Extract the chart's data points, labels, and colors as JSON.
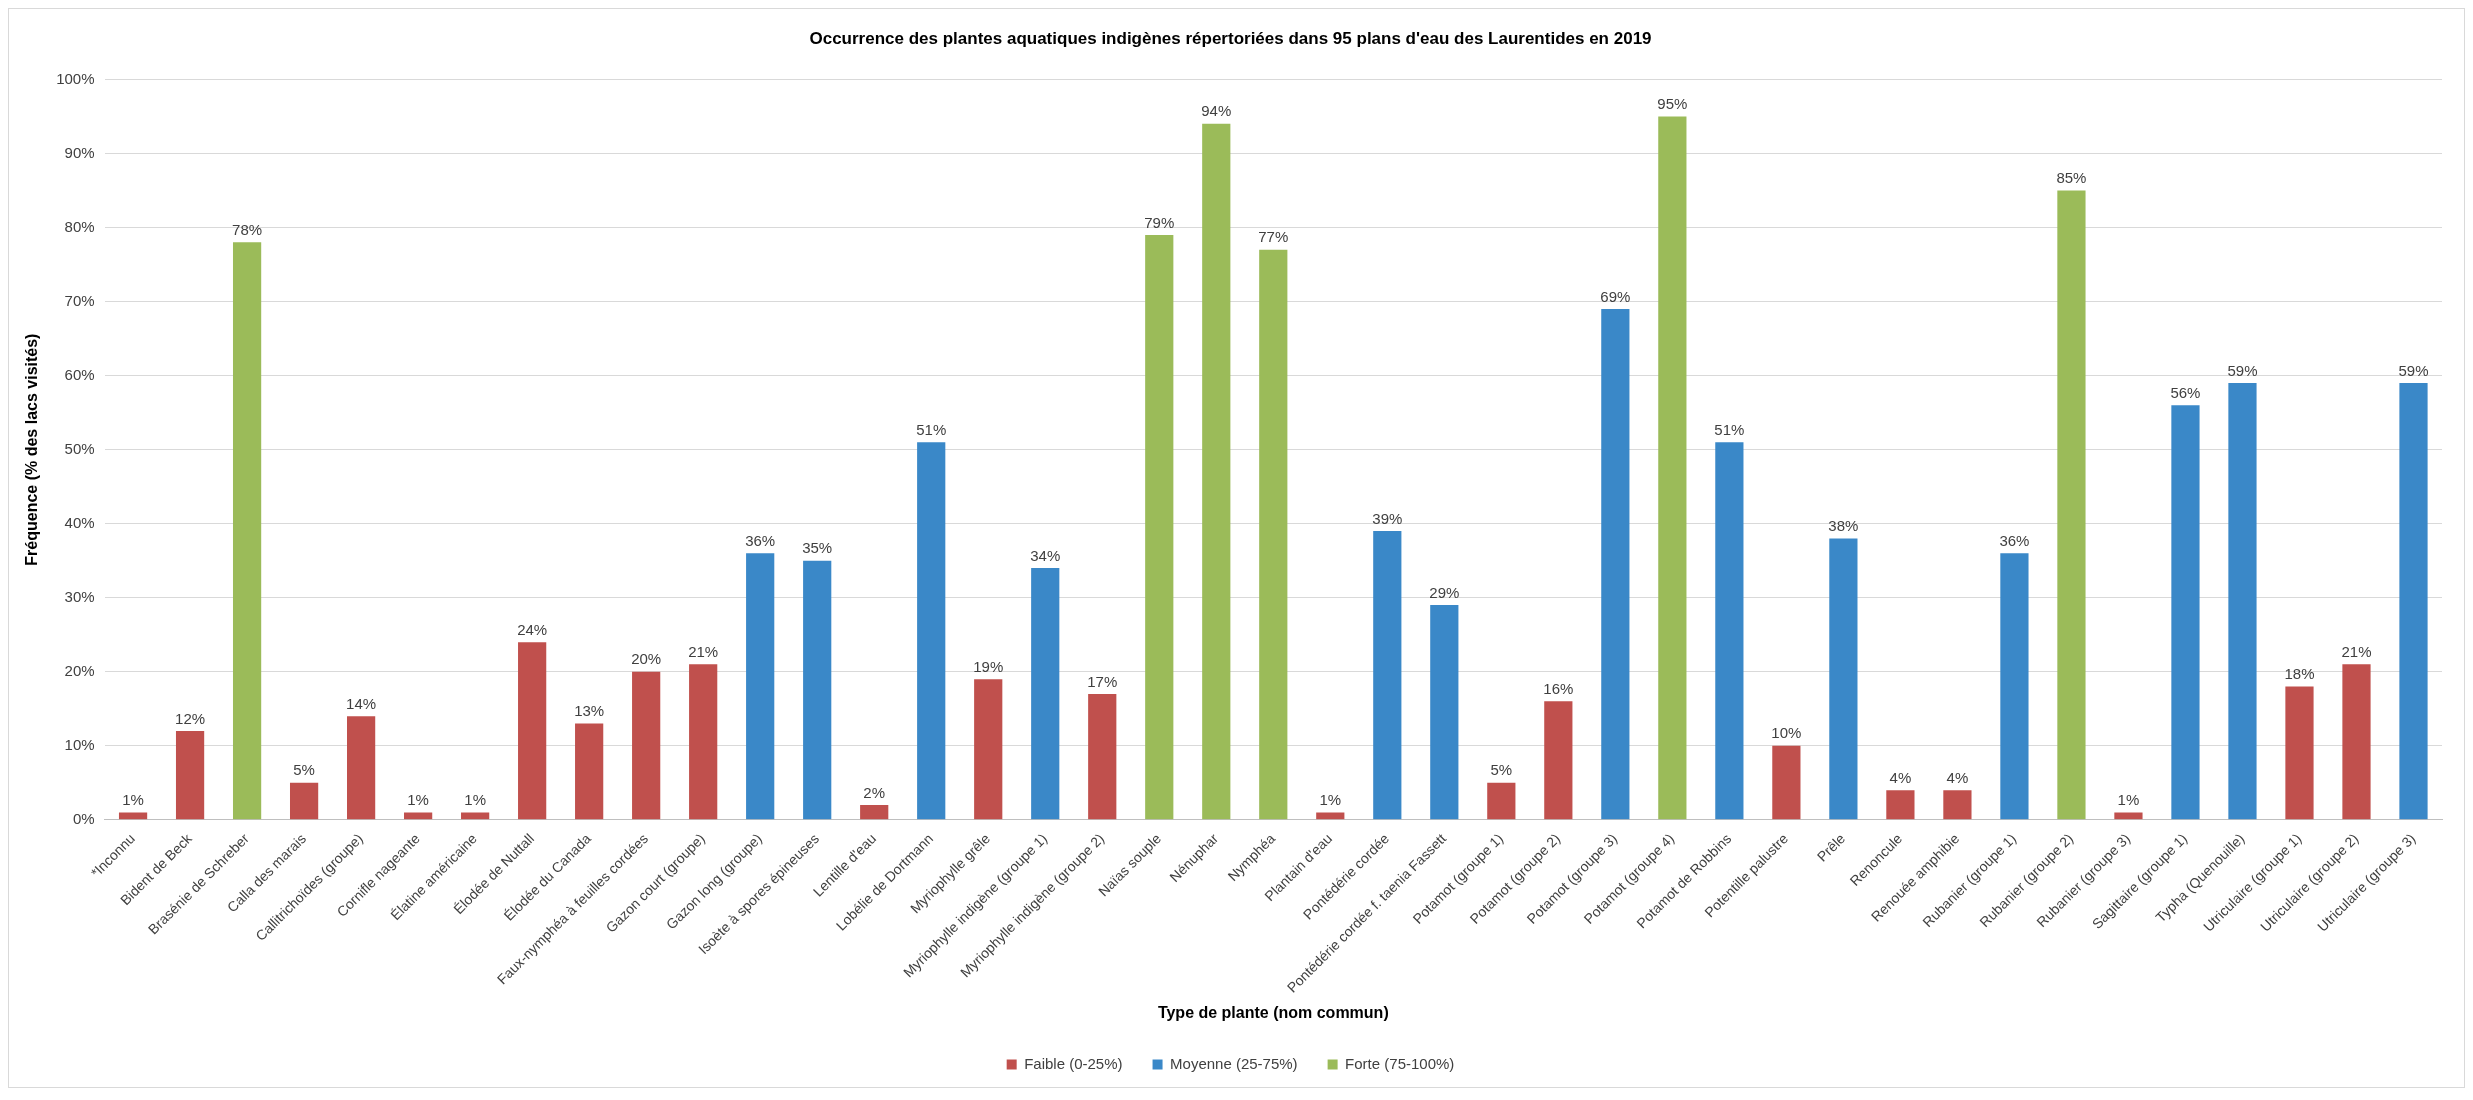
{
  "chart_data": {
    "type": "bar",
    "title": "Occurrence des plantes aquatiques indigènes répertoriées dans 95 plans d'eau des Laurentides en 2019",
    "xlabel": "Type de plante (nom commun)",
    "ylabel": "Fréquence (% des lacs visités)",
    "categories": [
      "*Inconnu",
      "Bident de Beck",
      "Brasénie de Schreber",
      "Calla des marais",
      "Callitrichoïdes (groupe)",
      "Cornifle nageante",
      "Élatine américaine",
      "Élodée de Nuttall",
      "Élodée du Canada",
      "Faux-nymphéa à feuilles cordées",
      "Gazon court (groupe)",
      "Gazon long (groupe)",
      "Isoète à spores épineuses",
      "Lentille d'eau",
      "Lobélie de Dortmann",
      "Myriophylle grêle",
      "Myriophylle indigène (groupe 1)",
      "Myriophylle indigène (groupe 2)",
      "Naïas souple",
      "Nénuphar",
      "Nymphéa",
      "Plantain d'eau",
      "Pontédérie cordée",
      "Pontédérie cordée f. taenia Fassett",
      "Potamot (groupe 1)",
      "Potamot (groupe 2)",
      "Potamot (groupe 3)",
      "Potamot (groupe 4)",
      "Potamot de Robbins",
      "Potentille palustre",
      "Prêle",
      "Renoncule",
      "Renouée amphibie",
      "Rubanier (groupe 1)",
      "Rubanier (groupe 2)",
      "Rubanier (groupe 3)",
      "Sagittaire (groupe 1)",
      "Typha (Quenouille)",
      "Utriculaire (groupe 1)",
      "Utriculaire (groupe 2)",
      "Utriculaire (groupe 3)"
    ],
    "stacked": true,
    "series": [
      {
        "name": "Faible (0-25%)",
        "color": "#c0504d",
        "values": [
          1,
          12,
          null,
          5,
          14,
          1,
          1,
          24,
          13,
          20,
          21,
          null,
          null,
          2,
          null,
          19,
          null,
          17,
          null,
          null,
          null,
          1,
          null,
          null,
          5,
          16,
          null,
          null,
          null,
          10,
          null,
          4,
          4,
          null,
          null,
          1,
          null,
          null,
          18,
          21,
          null
        ],
        "value_labels": [
          "1%",
          "12%",
          null,
          "5%",
          "14%",
          "1%",
          "1%",
          "24%",
          "13%",
          "20%",
          "21%",
          null,
          null,
          "2%",
          null,
          "19%",
          null,
          "17%",
          null,
          null,
          null,
          "1%",
          null,
          null,
          "5%",
          "16%",
          null,
          null,
          null,
          "10%",
          null,
          "4%",
          "4%",
          null,
          null,
          "1%",
          null,
          null,
          "18%",
          "21%",
          null
        ]
      },
      {
        "name": "Moyenne (25-75%)",
        "color": "#3a88c8",
        "values": [
          null,
          null,
          null,
          null,
          null,
          null,
          null,
          null,
          null,
          null,
          null,
          36,
          35,
          null,
          51,
          null,
          34,
          null,
          null,
          null,
          null,
          null,
          39,
          29,
          null,
          null,
          69,
          null,
          51,
          null,
          38,
          null,
          null,
          36,
          null,
          null,
          56,
          59,
          null,
          null,
          59
        ],
        "value_labels": [
          null,
          null,
          null,
          null,
          null,
          null,
          null,
          null,
          null,
          null,
          null,
          "36%",
          "35%",
          null,
          "51%",
          null,
          "34%",
          null,
          null,
          null,
          null,
          null,
          "39%",
          "29%",
          null,
          null,
          "69%",
          null,
          "51%",
          null,
          "38%",
          null,
          null,
          "36%",
          null,
          null,
          "56%",
          "59%",
          null,
          null,
          "59%"
        ]
      },
      {
        "name": "Forte (75-100%)",
        "color": "#9bbb59",
        "values": [
          null,
          null,
          78,
          null,
          null,
          null,
          null,
          null,
          null,
          null,
          null,
          null,
          null,
          null,
          null,
          null,
          null,
          null,
          79,
          94,
          77,
          null,
          null,
          null,
          null,
          null,
          null,
          95,
          null,
          null,
          null,
          null,
          null,
          null,
          85,
          null,
          null,
          null,
          null,
          null,
          null
        ],
        "value_labels": [
          null,
          null,
          "78%",
          null,
          null,
          null,
          null,
          null,
          null,
          null,
          null,
          null,
          null,
          null,
          null,
          null,
          null,
          null,
          "79%",
          "94%",
          "77%",
          null,
          null,
          null,
          null,
          null,
          null,
          "95%",
          null,
          null,
          null,
          null,
          null,
          null,
          "85%",
          null,
          null,
          null,
          null,
          null,
          null
        ]
      }
    ],
    "ylim": [
      0,
      100
    ],
    "yticks": [
      {
        "value": 0,
        "label": "0%"
      },
      {
        "value": 10,
        "label": "10%"
      },
      {
        "value": 20,
        "label": "20%"
      },
      {
        "value": 30,
        "label": "30%"
      },
      {
        "value": 40,
        "label": "40%"
      },
      {
        "value": 50,
        "label": "50%"
      },
      {
        "value": 60,
        "label": "60%"
      },
      {
        "value": 70,
        "label": "70%"
      },
      {
        "value": 80,
        "label": "80%"
      },
      {
        "value": 90,
        "label": "90%"
      },
      {
        "value": 100,
        "label": "100%"
      }
    ],
    "grid": "y",
    "legend": "bottom"
  }
}
